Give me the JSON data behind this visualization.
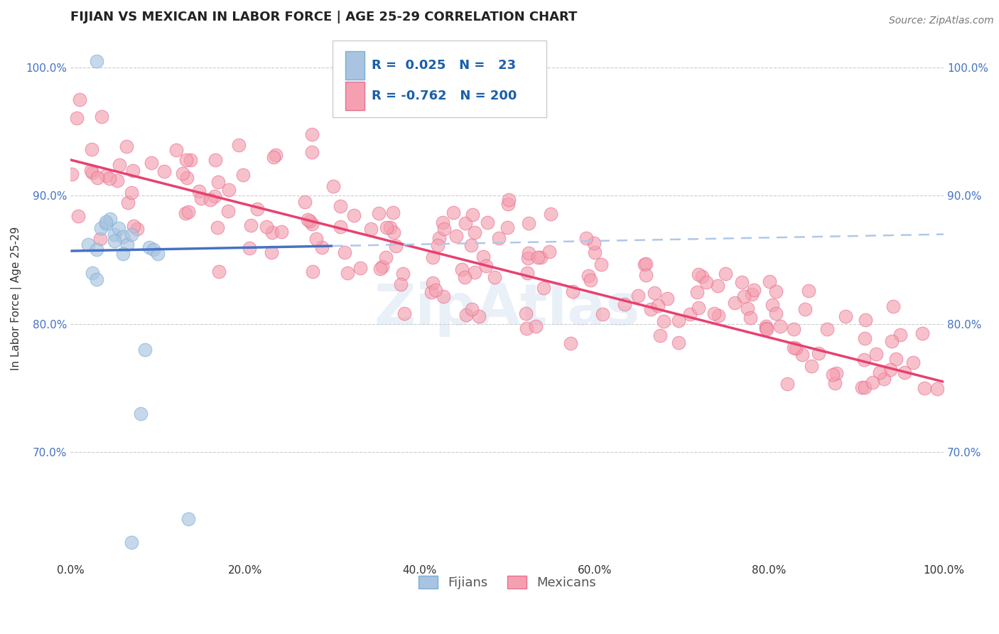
{
  "title": "FIJIAN VS MEXICAN IN LABOR FORCE | AGE 25-29 CORRELATION CHART",
  "source": "Source: ZipAtlas.com",
  "xlabel": "",
  "ylabel": "In Labor Force | Age 25-29",
  "xlim": [
    0.0,
    100.0
  ],
  "ylim": [
    0.615,
    1.025
  ],
  "yticks": [
    0.7,
    0.8,
    0.9,
    1.0
  ],
  "ytick_labels": [
    "70.0%",
    "80.0%",
    "90.0%",
    "100.0%"
  ],
  "xticks": [
    0.0,
    20.0,
    40.0,
    60.0,
    80.0,
    100.0
  ],
  "xtick_labels": [
    "0.0%",
    "20.0%",
    "40.0%",
    "60.0%",
    "80.0%",
    "100.0%"
  ],
  "fijian_color": "#a8c4e0",
  "fijian_edge_color": "#7aaed6",
  "mexican_color": "#f4a0b0",
  "mexican_edge_color": "#e87090",
  "fijian_trend_color": "#4472c4",
  "fijian_trend_dash_color": "#b0c8e8",
  "mexican_trend_color": "#e84070",
  "grid_color": "#cccccc",
  "background_color": "#ffffff",
  "legend_fijian_R": "0.025",
  "legend_fijian_N": "23",
  "legend_mexican_R": "-0.762",
  "legend_mexican_N": "200",
  "title_fontsize": 13,
  "label_fontsize": 11,
  "tick_fontsize": 11,
  "legend_fontsize": 13,
  "source_fontsize": 10,
  "watermark": "ZipAtlas",
  "fijian_seed": 42,
  "mexican_seed": 7
}
